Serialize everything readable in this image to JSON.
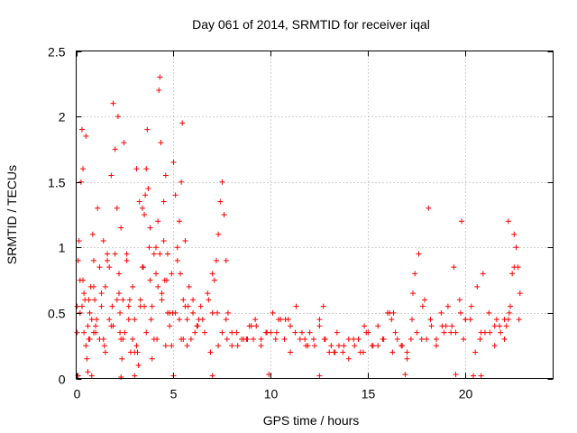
{
  "chart_data": {
    "type": "scatter",
    "title": "Day 061 of 2014, SRMTID for receiver iqal",
    "xlabel": "GPS time / hours",
    "ylabel": "SRMTID / TECUs",
    "xlim": [
      0,
      24.5
    ],
    "ylim": [
      0,
      2.5
    ],
    "x_ticks": [
      0,
      5,
      10,
      15,
      20
    ],
    "x_tick_labels": [
      "0",
      "5",
      "10",
      "15",
      "20"
    ],
    "y_ticks": [
      0,
      0.5,
      1,
      1.5,
      2,
      2.5
    ],
    "y_tick_labels": [
      "0",
      "0.5",
      "1",
      "1.5",
      "2",
      "2.5"
    ],
    "grid": true,
    "marker": "+",
    "color": "#ff0000",
    "series": [
      {
        "name": "SRMTID",
        "x": [
          0.05,
          0.1,
          0.15,
          0.2,
          0.25,
          0.3,
          0.35,
          0.4,
          0.45,
          0.5,
          0.55,
          0.6,
          0.65,
          0.7,
          0.75,
          0.8,
          0.85,
          0.9,
          0.95,
          1.0,
          1.1,
          1.2,
          1.3,
          1.4,
          1.5,
          1.6,
          1.7,
          1.8,
          1.9,
          2.0,
          2.1,
          2.15,
          2.2,
          2.25,
          2.3,
          2.35,
          2.4,
          2.5,
          2.6,
          2.7,
          2.8,
          2.9,
          3.0,
          3.1,
          3.2,
          3.3,
          3.4,
          3.5,
          3.6,
          3.65,
          3.7,
          3.75,
          3.8,
          3.9,
          4.0,
          4.1,
          4.2,
          4.25,
          4.3,
          4.35,
          4.4,
          4.5,
          4.6,
          4.7,
          4.8,
          4.9,
          5.0,
          5.1,
          5.2,
          5.3,
          5.4,
          5.45,
          5.5,
          5.6,
          5.7,
          5.8,
          5.9,
          6.0,
          6.2,
          6.4,
          6.6,
          6.8,
          7.0,
          7.1,
          7.2,
          7.3,
          7.4,
          7.5,
          7.6,
          7.7,
          7.8,
          8.0,
          8.3,
          8.6,
          8.9,
          9.2,
          9.5,
          9.8,
          10.1,
          10.4,
          10.7,
          11.0,
          11.3,
          11.6,
          11.9,
          12.2,
          12.5,
          12.8,
          13.1,
          13.4,
          13.7,
          14.0,
          14.3,
          14.6,
          14.9,
          15.2,
          15.5,
          15.8,
          16.1,
          16.4,
          16.7,
          17.0,
          17.2,
          17.3,
          17.4,
          17.6,
          17.9,
          18.2,
          18.5,
          18.8,
          18.9,
          19.1,
          19.4,
          19.7,
          19.9,
          20.0,
          20.3,
          20.6,
          20.9,
          21.2,
          21.5,
          21.8,
          22.0,
          22.1,
          22.2,
          22.3,
          22.4,
          22.5,
          22.6,
          22.7,
          22.8,
          0.3,
          0.6,
          0.9,
          1.2,
          1.5,
          1.8,
          2.1,
          2.4,
          2.7,
          3.0,
          3.3,
          3.6,
          3.9,
          4.2,
          4.5,
          4.8,
          5.1,
          5.4,
          5.7,
          6.0,
          6.5,
          7.0,
          7.5,
          8.0,
          8.5,
          9.0,
          9.5,
          10.0,
          10.5,
          11.0,
          11.5,
          12.0,
          12.5,
          13.0,
          13.5,
          14.0,
          14.5,
          15.0,
          15.5,
          16.0,
          16.5,
          17.0,
          17.5,
          18.0,
          18.5,
          19.0,
          19.5,
          20.0,
          20.5,
          21.0,
          21.5,
          22.0,
          22.5,
          0.2,
          0.7,
          1.3,
          1.9,
          2.6,
          3.1,
          3.8,
          4.4,
          4.9,
          5.6,
          6.3,
          6.9,
          7.7,
          8.8,
          10.3,
          11.8,
          13.3,
          14.8,
          16.3,
          17.8,
          19.3,
          20.8,
          22.2,
          0.4,
          1.0,
          1.6,
          2.3,
          2.9,
          3.5,
          4.1,
          4.7,
          5.3,
          6.1,
          7.3,
          9.1,
          10.9,
          12.7,
          14.5,
          16.2,
          18.1,
          19.8,
          21.6,
          0.9,
          1.4,
          2.0,
          3.4,
          4.0,
          4.6,
          5.2,
          0.5,
          1.7,
          2.2,
          2.45,
          3.25,
          3.55,
          4.3,
          4.65,
          5.5,
          0.1,
          0.8,
          2.3,
          3.0,
          5.0,
          7.0,
          9.9,
          12.5,
          16.9,
          19.5,
          20.4,
          20.8,
          0.05,
          0.35,
          0.65,
          1.05,
          1.45,
          1.85,
          2.25,
          2.75,
          3.15,
          3.45,
          3.85,
          4.15,
          4.55,
          4.95,
          5.35,
          5.75,
          6.25,
          6.75,
          7.25,
          7.75,
          8.25,
          8.75,
          9.25,
          9.75,
          10.25,
          10.75,
          11.25,
          11.75,
          12.25,
          12.75,
          13.25,
          13.75,
          14.25,
          14.75,
          15.25,
          15.75,
          16.25,
          16.75,
          17.25,
          17.75,
          18.25,
          18.75,
          19.25,
          19.75,
          20.25,
          20.75,
          21.25,
          21.75,
          22.25,
          22.75
        ],
        "y": [
          0.55,
          0.9,
          1.05,
          0.75,
          1.5,
          1.9,
          1.6,
          0.35,
          0.6,
          0.25,
          0.15,
          0.05,
          0.3,
          0.5,
          0.7,
          0.45,
          1.1,
          0.9,
          0.6,
          0.4,
          1.3,
          0.85,
          0.55,
          0.3,
          0.7,
          0.95,
          0.45,
          1.55,
          2.1,
          1.75,
          1.3,
          2.0,
          0.8,
          0.5,
          0.3,
          0.15,
          0.6,
          0.35,
          0.9,
          0.55,
          0.2,
          0.7,
          0.45,
          0.25,
          0.1,
          0.6,
          0.85,
          1.25,
          1.6,
          1.9,
          1.45,
          1.0,
          0.75,
          0.55,
          0.3,
          0.8,
          1.2,
          2.2,
          2.3,
          1.8,
          0.65,
          1.35,
          1.55,
          0.95,
          0.5,
          0.25,
          1.65,
          1.4,
          0.9,
          1.2,
          1.5,
          1.95,
          0.6,
          1.05,
          0.45,
          0.7,
          0.3,
          0.5,
          0.4,
          0.55,
          0.35,
          0.6,
          0.8,
          0.75,
          0.9,
          1.1,
          1.35,
          1.5,
          1.25,
          0.9,
          0.5,
          0.35,
          0.25,
          0.3,
          0.4,
          0.45,
          0.3,
          0.35,
          0.5,
          0.45,
          0.3,
          0.4,
          0.55,
          0.35,
          0.25,
          0.3,
          0.45,
          0.3,
          0.25,
          0.35,
          0.2,
          0.3,
          0.25,
          0.2,
          0.35,
          0.25,
          0.4,
          0.3,
          0.5,
          0.35,
          0.25,
          0.15,
          0.3,
          0.65,
          0.8,
          0.95,
          0.6,
          0.45,
          0.3,
          0.4,
          0.35,
          0.55,
          0.85,
          0.6,
          0.3,
          0.45,
          0.55,
          0.7,
          0.8,
          0.5,
          0.25,
          0.35,
          0.3,
          0.4,
          0.45,
          0.55,
          0.8,
          1.1,
          1.0,
          0.85,
          0.65,
          0.55,
          0.4,
          0.35,
          0.3,
          0.2,
          0.4,
          0.6,
          0.3,
          0.45,
          0.2,
          0.55,
          0.35,
          0.15,
          0.7,
          1.05,
          0.4,
          0.5,
          0.3,
          0.25,
          0.6,
          0.45,
          0.5,
          0.35,
          0.25,
          0.3,
          0.4,
          0.25,
          0.35,
          0.45,
          0.2,
          0.3,
          0.35,
          0.4,
          0.2,
          0.25,
          0.15,
          0.3,
          0.35,
          0.25,
          0.5,
          0.3,
          0.2,
          0.35,
          0.3,
          0.25,
          0.4,
          0.35,
          0.45,
          0.2,
          0.35,
          0.4,
          0.45,
          0.85,
          0.5,
          0.3,
          0.65,
          0.4,
          0.95,
          1.6,
          1.15,
          0.6,
          0.8,
          0.55,
          0.45,
          0.2,
          0.45,
          0.3,
          0.35,
          0.25,
          0.2,
          0.4,
          0.5,
          0.55,
          0.4,
          0.35,
          1.2,
          0.65,
          0.35,
          0.9,
          1.15,
          0.3,
          0.55,
          1.0,
          0.5,
          0.45,
          0.35,
          0.25,
          0.3,
          0.45,
          0.55,
          0.3,
          0.45,
          1.3,
          1.2,
          0.45,
          0.7,
          1.05,
          0.95,
          1.3,
          0.95,
          0.25,
          1.0,
          1.85,
          0.85,
          0.65,
          1.8,
          1.35,
          1.4,
          0.95,
          0.75,
          0.3,
          0.02,
          0.02,
          0.01,
          0.02,
          0.02,
          0.02,
          0.03,
          0.02,
          0.03,
          0.03,
          0.02,
          0.02,
          0.35,
          0.75,
          0.6,
          0.45,
          0.25,
          0.55,
          0.35,
          0.6,
          0.2,
          0.85,
          0.45,
          0.3,
          0.75,
          0.5,
          0.8,
          0.55,
          0.4,
          0.65,
          0.5,
          0.3,
          0.35,
          0.3,
          0.4,
          0.35,
          0.3,
          0.45,
          0.35,
          0.3,
          0.25,
          0.3,
          0.2,
          0.25,
          0.3,
          0.2,
          0.25,
          0.3,
          0.2,
          0.25,
          0.45,
          0.3,
          0.4,
          0.5,
          0.35,
          0.5,
          0.45,
          0.3,
          0.35,
          0.4,
          0.5,
          0.45
        ]
      }
    ]
  }
}
